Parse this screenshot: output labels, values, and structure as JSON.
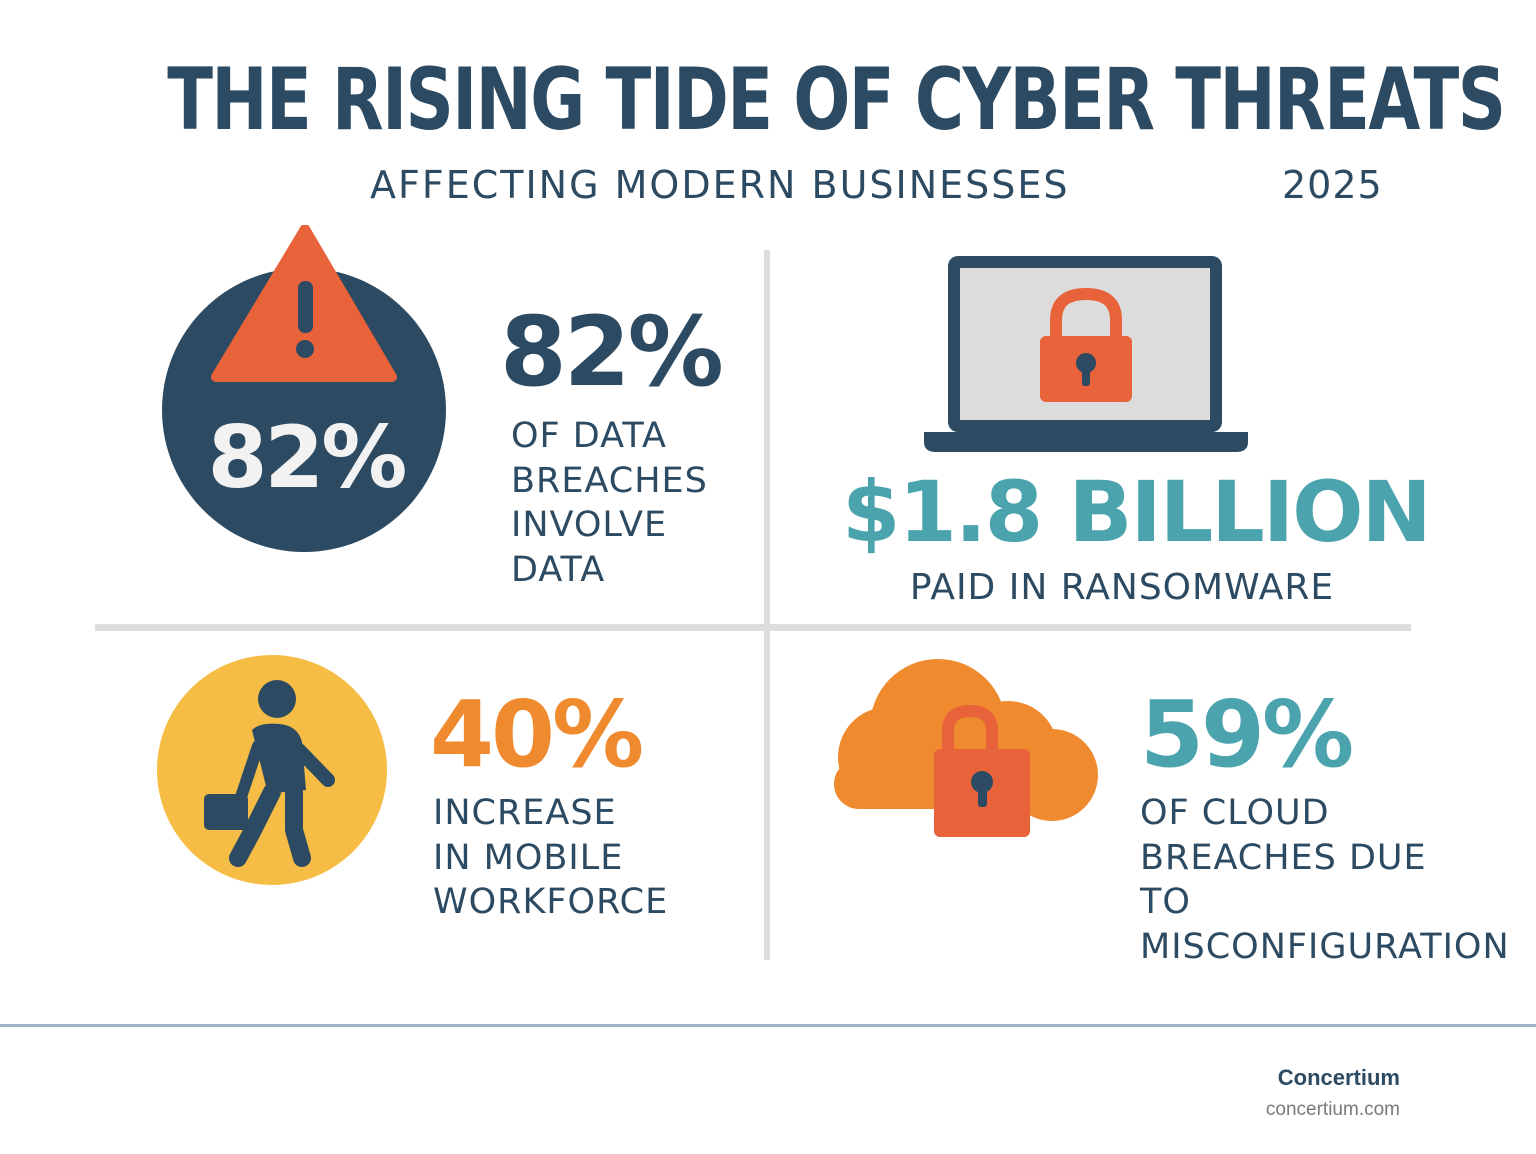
{
  "colors": {
    "navy": "#2c4a62",
    "orange_red": "#e8623a",
    "orange": "#f08a2e",
    "yellow": "#f5bd45",
    "teal": "#4ba3ad",
    "divider": "#dddddd",
    "footer_rule": "#9fb2c6",
    "screen_gray": "#dcdcdc",
    "white_text": "#f2f2f2"
  },
  "header": {
    "title": "THE RISING TIDE OF CYBER THREATS",
    "subtitle": "AFFECTING MODERN BUSINESSES",
    "year": "2025"
  },
  "stats": [
    {
      "icon": "warning-icon",
      "icon_label": "82%",
      "value": "82%",
      "description": "OF DATA\nBREACHES\nINVOLVE\nDATA"
    },
    {
      "icon": "laptop-lock-icon",
      "value": "$1.8 BILLION",
      "description": "PAID IN RANSOMWARE"
    },
    {
      "icon": "walking-person-briefcase-icon",
      "value": "40%",
      "description": "INCREASE\nIN MOBILE\nWORKFORCE"
    },
    {
      "icon": "cloud-lock-icon",
      "value": "59%",
      "description": "OF CLOUD\nBREACHES DUE\nTO\nMISCONFIGURATION"
    }
  ],
  "footer": {
    "brand": "Concertium",
    "url": "concertium.com"
  }
}
